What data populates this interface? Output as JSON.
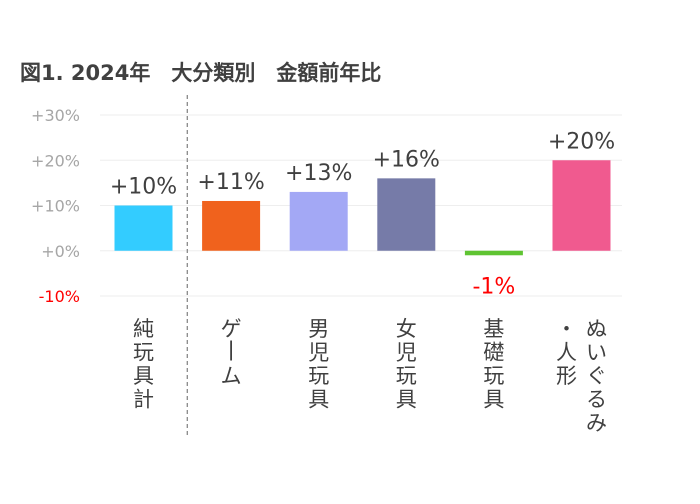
{
  "chart_data": {
    "type": "bar",
    "title": "図1. 2024年　大分類別　金額前年比",
    "categories": [
      "純玩具計",
      "ゲーム",
      "男児玩具",
      "女児玩具",
      "基礎玩具",
      "ぬいぐるみ・人形"
    ],
    "category_label_lines": [
      [
        "純玩具計"
      ],
      [
        "ゲーム"
      ],
      [
        "男児玩具"
      ],
      [
        "女児玩具"
      ],
      [
        "基礎玩具"
      ],
      [
        "ぬいぐるみ",
        "・人形"
      ]
    ],
    "values": [
      10,
      11,
      13,
      16,
      -1,
      20
    ],
    "data_labels": [
      "+10%",
      "+11%",
      "+13%",
      "+16%",
      "-1%",
      "+20%"
    ],
    "bar_colors": [
      "#33ccff",
      "#f0621d",
      "#a3a8f5",
      "#767ba8",
      "#5fc432",
      "#f05a8f"
    ],
    "ylim": [
      -10,
      30
    ],
    "yticks": [
      30,
      20,
      10,
      0,
      -10
    ],
    "ytick_labels": [
      "+30%",
      "+20%",
      "+10%",
      "+0%",
      "-10%"
    ],
    "ytick_colors": [
      "#a6a6a6",
      "#a6a6a6",
      "#a6a6a6",
      "#a6a6a6",
      "#ff0000"
    ],
    "grid": true,
    "separator_after_category": 0,
    "legend": "none"
  }
}
